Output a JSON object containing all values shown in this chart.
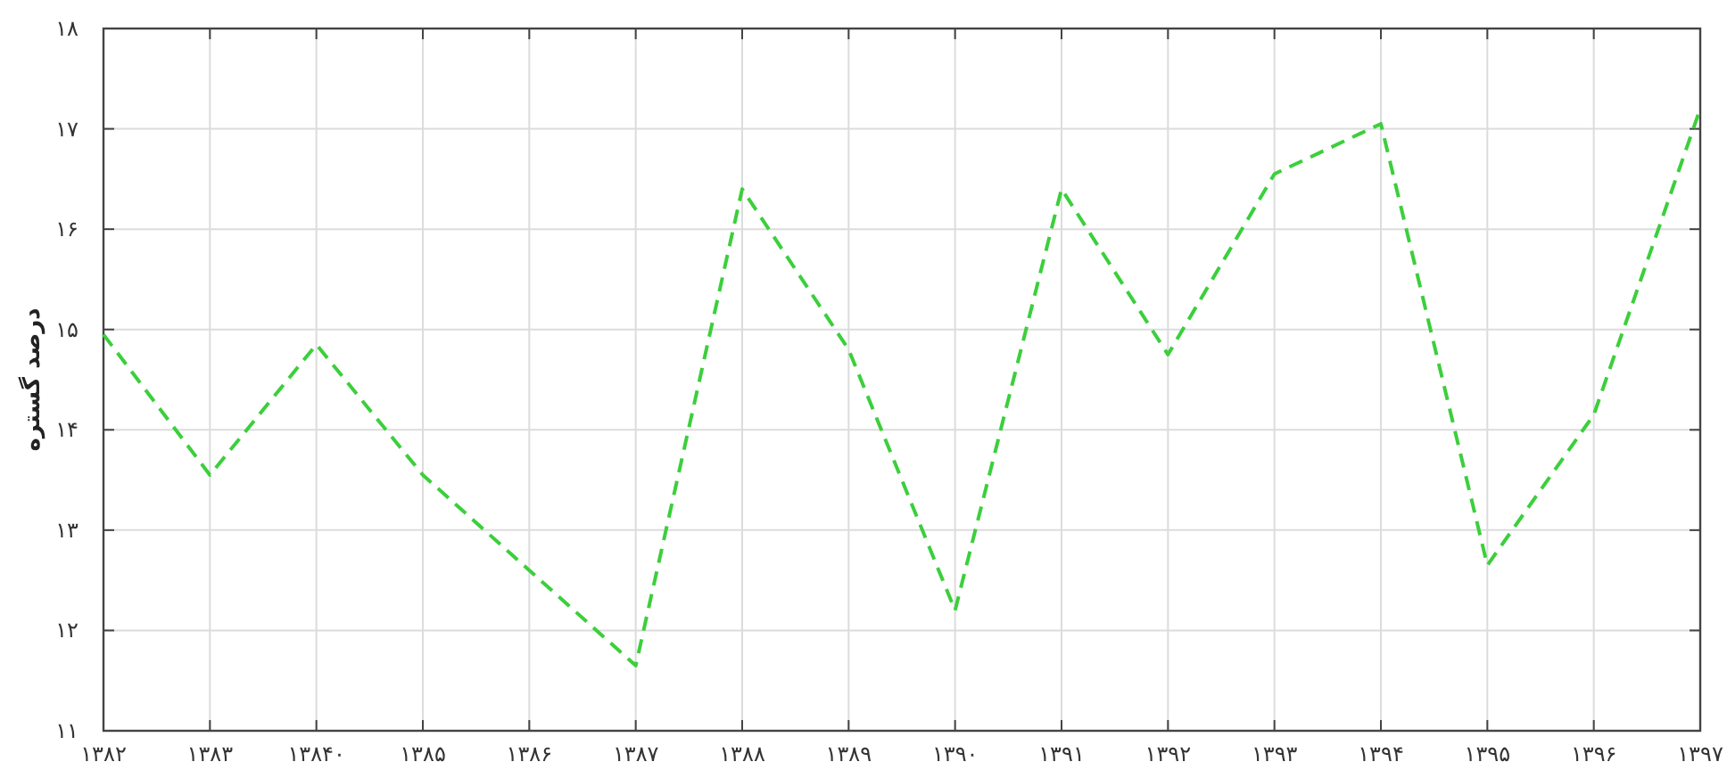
{
  "chart_data": {
    "type": "line",
    "ylabel": "درصد گستره",
    "categories": [
      "۱۳۸۲",
      "۱۳۸۳",
      "۱۳۸۴۰",
      "۱۳۸۵",
      "۱۳۸۶",
      "۱۳۸۷",
      "۱۳۸۸",
      "۱۳۸۹",
      "۱۳۹۰",
      "۱۳۹۱",
      "۱۳۹۲",
      "۱۳۹۳",
      "۱۳۹۴",
      "۱۳۹۵",
      "۱۳۹۶",
      "۱۳۹۷"
    ],
    "series": [
      {
        "color": "#3ccf3c",
        "line_style": "dashed",
        "values": [
          14.95,
          13.55,
          14.85,
          13.55,
          12.6,
          11.65,
          16.4,
          14.8,
          12.2,
          16.4,
          14.75,
          16.55,
          17.05,
          12.65,
          14.15,
          17.2
        ]
      }
    ],
    "ylim": [
      11,
      18
    ],
    "yticks": [
      {
        "value": 11,
        "label": "۱۱"
      },
      {
        "value": 12,
        "label": "۱۲"
      },
      {
        "value": 13,
        "label": "۱۳"
      },
      {
        "value": 14,
        "label": "۱۴"
      },
      {
        "value": 15,
        "label": "۱۵"
      },
      {
        "value": 16,
        "label": "۱۶"
      },
      {
        "value": 17,
        "label": "۱۷"
      },
      {
        "value": 18,
        "label": "۱۸"
      }
    ],
    "grid": true
  }
}
